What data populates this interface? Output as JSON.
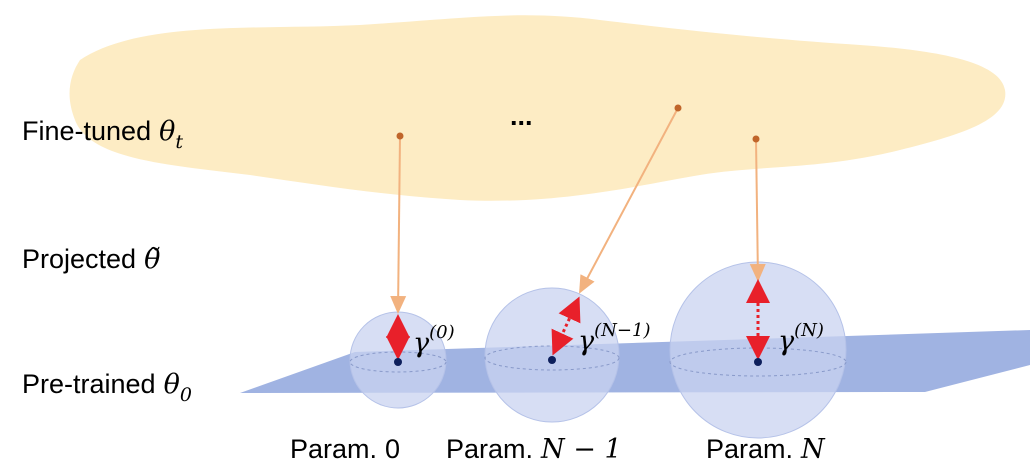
{
  "rows": [
    {
      "text": "Fine-tuned",
      "symbol": "θ",
      "sub": "t"
    },
    {
      "text": "Projected",
      "symbol": "θ̃"
    },
    {
      "text": "Pre-trained",
      "symbol": "θ",
      "sub": "0"
    }
  ],
  "ellipsis": "...",
  "radii": [
    {
      "symbol": "γ",
      "sup": "(0)"
    },
    {
      "symbol": "γ",
      "sup": "(N−1)"
    },
    {
      "symbol": "γ",
      "sup": "(N)"
    }
  ],
  "params": [
    {
      "text": "Param.",
      "math": "0"
    },
    {
      "text": "Param.",
      "math": "N − 1"
    },
    {
      "text": "Param.",
      "math": "N"
    }
  ]
}
